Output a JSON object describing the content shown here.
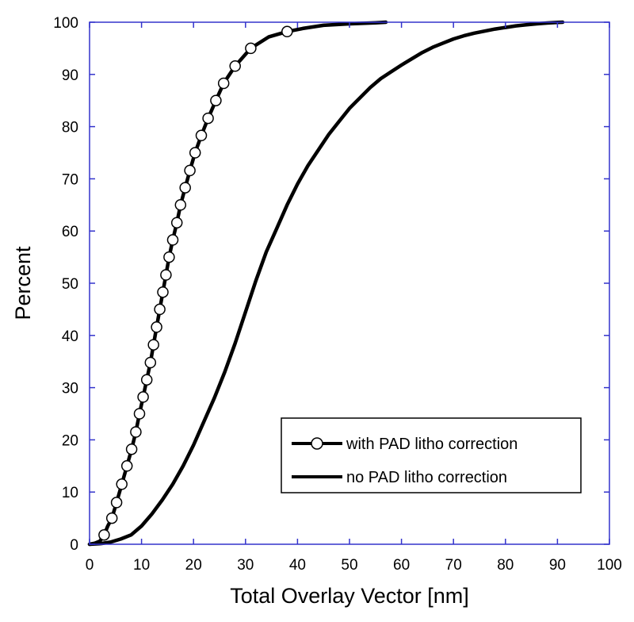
{
  "chart_data": {
    "type": "line",
    "title": "",
    "xlabel": "Total Overlay Vector [nm]",
    "ylabel": "Percent",
    "xlim": [
      0,
      100
    ],
    "ylim": [
      0,
      100
    ],
    "xticks": [
      "0",
      "10",
      "20",
      "30",
      "40",
      "50",
      "60",
      "70",
      "80",
      "90",
      "100"
    ],
    "yticks": [
      "0",
      "10",
      "20",
      "30",
      "40",
      "50",
      "60",
      "70",
      "80",
      "90",
      "100"
    ],
    "grid": false,
    "legend_position": "bottom-right",
    "frame_color": "#3333cc",
    "series": [
      {
        "name": "with PAD litho correction",
        "color": "#000000",
        "marker": "open-circle",
        "points": [
          [
            0,
            0
          ],
          [
            1,
            0.2
          ],
          [
            2,
            0.6
          ],
          [
            2.8,
            1.8
          ],
          [
            3.5,
            3.5
          ],
          [
            4.3,
            5.0
          ],
          [
            5.2,
            8.0
          ],
          [
            6.2,
            11.5
          ],
          [
            7.2,
            15.0
          ],
          [
            8.1,
            18.2
          ],
          [
            8.9,
            21.5
          ],
          [
            9.6,
            25.0
          ],
          [
            10.3,
            28.2
          ],
          [
            11.0,
            31.5
          ],
          [
            11.7,
            34.8
          ],
          [
            12.3,
            38.2
          ],
          [
            12.9,
            41.6
          ],
          [
            13.5,
            45.0
          ],
          [
            14.1,
            48.3
          ],
          [
            14.7,
            51.6
          ],
          [
            15.3,
            55.0
          ],
          [
            16.0,
            58.3
          ],
          [
            16.8,
            61.6
          ],
          [
            17.5,
            65.0
          ],
          [
            18.4,
            68.3
          ],
          [
            19.3,
            71.6
          ],
          [
            20.3,
            75.0
          ],
          [
            21.5,
            78.3
          ],
          [
            22.8,
            81.6
          ],
          [
            24.3,
            85.0
          ],
          [
            25.8,
            88.3
          ],
          [
            28.0,
            91.6
          ],
          [
            31.0,
            95.0
          ],
          [
            34.5,
            97.2
          ],
          [
            38.0,
            98.2
          ],
          [
            41,
            98.8
          ],
          [
            45,
            99.4
          ],
          [
            50,
            99.7
          ],
          [
            55,
            99.9
          ],
          [
            57,
            100.0
          ]
        ],
        "marker_points": [
          [
            2.8,
            1.8
          ],
          [
            4.3,
            5.0
          ],
          [
            5.2,
            8.0
          ],
          [
            6.2,
            11.5
          ],
          [
            7.2,
            15.0
          ],
          [
            8.1,
            18.2
          ],
          [
            8.9,
            21.5
          ],
          [
            9.6,
            25.0
          ],
          [
            10.3,
            28.2
          ],
          [
            11.0,
            31.5
          ],
          [
            11.7,
            34.8
          ],
          [
            12.3,
            38.2
          ],
          [
            12.9,
            41.6
          ],
          [
            13.5,
            45.0
          ],
          [
            14.1,
            48.3
          ],
          [
            14.7,
            51.6
          ],
          [
            15.3,
            55.0
          ],
          [
            16.0,
            58.3
          ],
          [
            16.8,
            61.6
          ],
          [
            17.5,
            65.0
          ],
          [
            18.4,
            68.3
          ],
          [
            19.3,
            71.6
          ],
          [
            20.3,
            75.0
          ],
          [
            21.5,
            78.3
          ],
          [
            22.8,
            81.6
          ],
          [
            24.3,
            85.0
          ],
          [
            25.8,
            88.3
          ],
          [
            28.0,
            91.6
          ],
          [
            31.0,
            95.0
          ],
          [
            38.0,
            98.2
          ]
        ]
      },
      {
        "name": "no PAD litho correction",
        "color": "#000000",
        "marker": "none",
        "points": [
          [
            0,
            0
          ],
          [
            2,
            0.1
          ],
          [
            4,
            0.4
          ],
          [
            6,
            1.0
          ],
          [
            8,
            1.8
          ],
          [
            10,
            3.5
          ],
          [
            12,
            5.8
          ],
          [
            14,
            8.5
          ],
          [
            16,
            11.5
          ],
          [
            18,
            15.0
          ],
          [
            20,
            19.0
          ],
          [
            22,
            23.5
          ],
          [
            24,
            28.0
          ],
          [
            26,
            33.0
          ],
          [
            28,
            38.5
          ],
          [
            30,
            44.5
          ],
          [
            32,
            50.5
          ],
          [
            34,
            56.0
          ],
          [
            36,
            60.5
          ],
          [
            38,
            65.0
          ],
          [
            40,
            69.0
          ],
          [
            42,
            72.5
          ],
          [
            44,
            75.5
          ],
          [
            46,
            78.5
          ],
          [
            48,
            81.0
          ],
          [
            50,
            83.5
          ],
          [
            52,
            85.5
          ],
          [
            54,
            87.5
          ],
          [
            56,
            89.2
          ],
          [
            58,
            90.5
          ],
          [
            60,
            91.8
          ],
          [
            62,
            93.0
          ],
          [
            64,
            94.2
          ],
          [
            66,
            95.2
          ],
          [
            68,
            96.0
          ],
          [
            70,
            96.8
          ],
          [
            72,
            97.4
          ],
          [
            74,
            97.9
          ],
          [
            76,
            98.3
          ],
          [
            78,
            98.7
          ],
          [
            80,
            99.0
          ],
          [
            82,
            99.3
          ],
          [
            84,
            99.5
          ],
          [
            86,
            99.7
          ],
          [
            88,
            99.85
          ],
          [
            90,
            99.95
          ],
          [
            91,
            100.0
          ]
        ]
      }
    ]
  }
}
